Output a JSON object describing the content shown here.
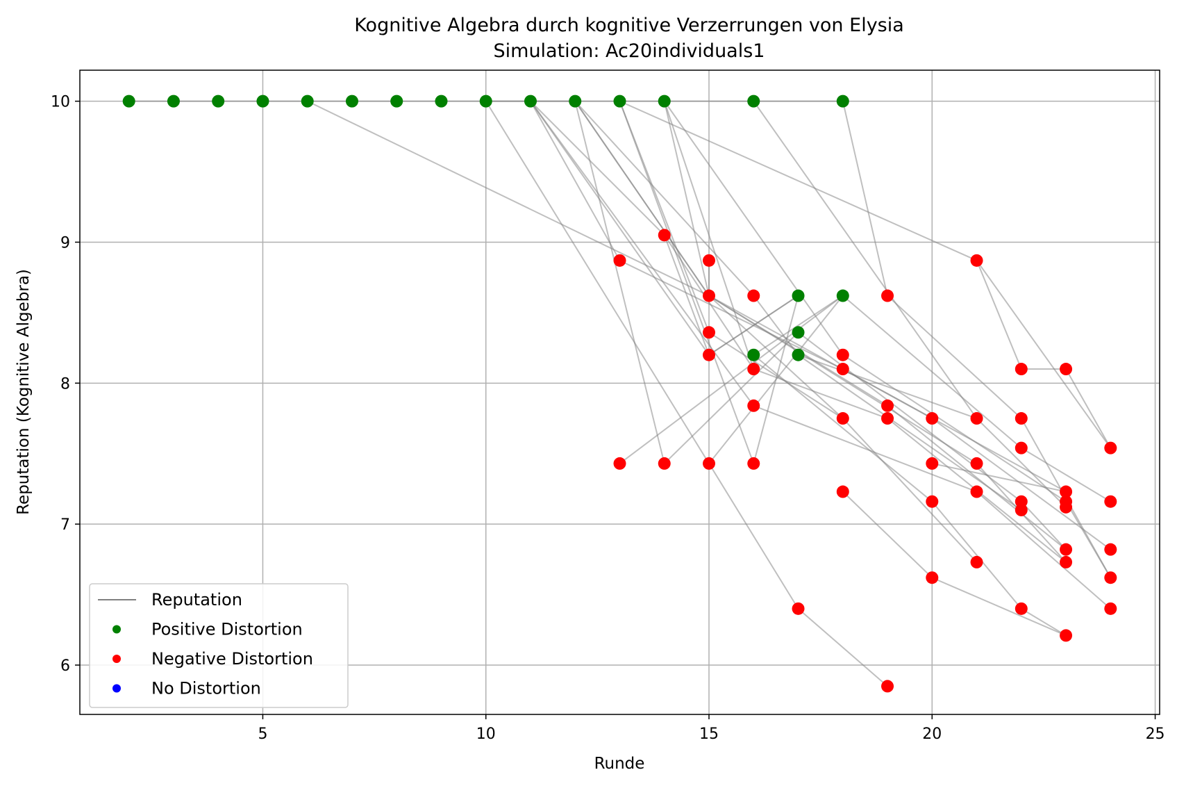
{
  "chart_data": {
    "type": "scatter",
    "title": "Kognitive Algebra durch kognitive Verzerrungen von Elysia",
    "subtitle": "Simulation: Ac20individuals1",
    "xlabel": "Runde",
    "ylabel": "Reputation (Kognitive Algebra)",
    "xlim": [
      0.9,
      25.1
    ],
    "ylim": [
      5.65,
      10.22
    ],
    "xticks": [
      5,
      10,
      15,
      20,
      25
    ],
    "yticks": [
      6,
      7,
      8,
      9,
      10
    ],
    "grid": true,
    "legend_position": "bottom-left",
    "colors": {
      "line": "#808080",
      "positive": "#008000",
      "negative": "#ff0000",
      "none": "#0000ff"
    },
    "legend": [
      {
        "label": "Reputation",
        "kind": "line",
        "color": "#808080"
      },
      {
        "label": "Positive Distortion",
        "kind": "dot",
        "color": "#008000"
      },
      {
        "label": "Negative Distortion",
        "kind": "dot",
        "color": "#ff0000"
      },
      {
        "label": "No Distortion",
        "kind": "dot",
        "color": "#0000ff"
      }
    ],
    "points": [
      {
        "x": 2,
        "y": 10.0,
        "d": "positive"
      },
      {
        "x": 3,
        "y": 10.0,
        "d": "positive"
      },
      {
        "x": 4,
        "y": 10.0,
        "d": "positive"
      },
      {
        "x": 5,
        "y": 10.0,
        "d": "positive"
      },
      {
        "x": 6,
        "y": 10.0,
        "d": "positive"
      },
      {
        "x": 7,
        "y": 10.0,
        "d": "positive"
      },
      {
        "x": 8,
        "y": 10.0,
        "d": "positive"
      },
      {
        "x": 9,
        "y": 10.0,
        "d": "positive"
      },
      {
        "x": 10,
        "y": 10.0,
        "d": "positive"
      },
      {
        "x": 11,
        "y": 10.0,
        "d": "positive"
      },
      {
        "x": 12,
        "y": 10.0,
        "d": "positive"
      },
      {
        "x": 13,
        "y": 10.0,
        "d": "positive"
      },
      {
        "x": 14,
        "y": 10.0,
        "d": "positive"
      },
      {
        "x": 16,
        "y": 10.0,
        "d": "positive"
      },
      {
        "x": 18,
        "y": 10.0,
        "d": "positive"
      },
      {
        "x": 14,
        "y": 9.05,
        "d": "negative"
      },
      {
        "x": 13,
        "y": 8.87,
        "d": "negative"
      },
      {
        "x": 15,
        "y": 8.87,
        "d": "negative"
      },
      {
        "x": 15,
        "y": 8.62,
        "d": "negative"
      },
      {
        "x": 16,
        "y": 8.62,
        "d": "negative"
      },
      {
        "x": 17,
        "y": 8.62,
        "d": "positive"
      },
      {
        "x": 18,
        "y": 8.62,
        "d": "positive"
      },
      {
        "x": 19,
        "y": 8.62,
        "d": "negative"
      },
      {
        "x": 21,
        "y": 8.87,
        "d": "negative"
      },
      {
        "x": 15,
        "y": 8.36,
        "d": "negative"
      },
      {
        "x": 17,
        "y": 8.36,
        "d": "positive"
      },
      {
        "x": 15,
        "y": 8.2,
        "d": "negative"
      },
      {
        "x": 16,
        "y": 8.2,
        "d": "positive"
      },
      {
        "x": 17,
        "y": 8.2,
        "d": "positive"
      },
      {
        "x": 18,
        "y": 8.2,
        "d": "negative"
      },
      {
        "x": 16,
        "y": 8.1,
        "d": "negative"
      },
      {
        "x": 18,
        "y": 8.1,
        "d": "negative"
      },
      {
        "x": 22,
        "y": 8.1,
        "d": "negative"
      },
      {
        "x": 23,
        "y": 8.1,
        "d": "negative"
      },
      {
        "x": 16,
        "y": 7.84,
        "d": "negative"
      },
      {
        "x": 19,
        "y": 7.84,
        "d": "negative"
      },
      {
        "x": 18,
        "y": 7.75,
        "d": "negative"
      },
      {
        "x": 19,
        "y": 7.75,
        "d": "negative"
      },
      {
        "x": 20,
        "y": 7.75,
        "d": "negative"
      },
      {
        "x": 21,
        "y": 7.75,
        "d": "negative"
      },
      {
        "x": 22,
        "y": 7.75,
        "d": "negative"
      },
      {
        "x": 24,
        "y": 7.54,
        "d": "negative"
      },
      {
        "x": 22,
        "y": 7.54,
        "d": "negative"
      },
      {
        "x": 13,
        "y": 7.43,
        "d": "negative"
      },
      {
        "x": 14,
        "y": 7.43,
        "d": "negative"
      },
      {
        "x": 15,
        "y": 7.43,
        "d": "negative"
      },
      {
        "x": 16,
        "y": 7.43,
        "d": "negative"
      },
      {
        "x": 20,
        "y": 7.43,
        "d": "negative"
      },
      {
        "x": 21,
        "y": 7.43,
        "d": "negative"
      },
      {
        "x": 18,
        "y": 7.23,
        "d": "negative"
      },
      {
        "x": 21,
        "y": 7.23,
        "d": "negative"
      },
      {
        "x": 23,
        "y": 7.23,
        "d": "negative"
      },
      {
        "x": 20,
        "y": 7.16,
        "d": "negative"
      },
      {
        "x": 22,
        "y": 7.16,
        "d": "negative"
      },
      {
        "x": 23,
        "y": 7.16,
        "d": "negative"
      },
      {
        "x": 24,
        "y": 7.16,
        "d": "negative"
      },
      {
        "x": 23,
        "y": 7.12,
        "d": "negative"
      },
      {
        "x": 22,
        "y": 7.1,
        "d": "negative"
      },
      {
        "x": 23,
        "y": 6.82,
        "d": "negative"
      },
      {
        "x": 24,
        "y": 6.82,
        "d": "negative"
      },
      {
        "x": 21,
        "y": 6.73,
        "d": "negative"
      },
      {
        "x": 23,
        "y": 6.73,
        "d": "negative"
      },
      {
        "x": 20,
        "y": 6.62,
        "d": "negative"
      },
      {
        "x": 24,
        "y": 6.62,
        "d": "negative"
      },
      {
        "x": 17,
        "y": 6.4,
        "d": "negative"
      },
      {
        "x": 22,
        "y": 6.4,
        "d": "negative"
      },
      {
        "x": 24,
        "y": 6.4,
        "d": "negative"
      },
      {
        "x": 23,
        "y": 6.21,
        "d": "negative"
      },
      {
        "x": 19,
        "y": 5.85,
        "d": "negative"
      }
    ],
    "segments": [
      [
        2,
        10,
        3,
        10
      ],
      [
        3,
        10,
        4,
        10
      ],
      [
        4,
        10,
        5,
        10
      ],
      [
        5,
        10,
        6,
        10
      ],
      [
        6,
        10,
        7,
        10
      ],
      [
        7,
        10,
        8,
        10
      ],
      [
        8,
        10,
        9,
        10
      ],
      [
        9,
        10,
        10,
        10
      ],
      [
        10,
        10,
        11,
        10
      ],
      [
        11,
        10,
        12,
        10
      ],
      [
        12,
        10,
        13,
        10
      ],
      [
        13,
        10,
        14,
        10
      ],
      [
        14,
        10,
        16,
        10
      ],
      [
        16,
        10,
        18,
        10
      ],
      [
        6,
        10,
        15,
        8.62
      ],
      [
        10,
        10,
        15,
        7.43
      ],
      [
        10,
        10,
        12,
        10
      ],
      [
        11,
        10,
        13,
        8.87
      ],
      [
        11,
        10,
        15,
        8.2
      ],
      [
        11,
        10,
        16,
        7.84
      ],
      [
        11,
        10,
        14,
        9.05
      ],
      [
        12,
        10,
        15,
        8.62
      ],
      [
        12,
        10,
        15,
        8.62
      ],
      [
        12,
        10,
        14,
        7.43
      ],
      [
        12,
        10,
        16,
        8.62
      ],
      [
        13,
        10,
        15,
        8.36
      ],
      [
        13,
        10,
        16,
        7.43
      ],
      [
        13,
        10,
        21,
        8.87
      ],
      [
        14,
        10,
        15,
        8.62
      ],
      [
        14,
        10,
        16,
        8.1
      ],
      [
        14,
        10,
        18,
        8.2
      ],
      [
        16,
        10,
        21,
        7.75
      ],
      [
        18,
        10,
        19,
        8.62
      ],
      [
        14,
        9.05,
        15,
        8.2
      ],
      [
        14,
        9.05,
        16,
        8.1
      ],
      [
        13,
        8.87,
        18,
        8.1
      ],
      [
        15,
        8.87,
        15,
        8.62
      ],
      [
        15,
        8.62,
        19,
        7.84
      ],
      [
        15,
        8.62,
        20,
        7.75
      ],
      [
        15,
        8.62,
        18,
        7.75
      ],
      [
        15,
        8.62,
        21,
        7.43
      ],
      [
        16,
        8.62,
        17,
        8.2
      ],
      [
        17,
        8.62,
        15,
        8.2
      ],
      [
        18,
        8.62,
        15,
        7.43
      ],
      [
        18,
        8.62,
        16,
        8.2
      ],
      [
        18,
        8.62,
        22,
        7.54
      ],
      [
        19,
        8.62,
        22,
        7.75
      ],
      [
        21,
        8.87,
        22,
        8.1
      ],
      [
        21,
        8.87,
        24,
        7.54
      ],
      [
        15,
        8.36,
        18,
        7.75
      ],
      [
        17,
        8.36,
        22,
        7.16
      ],
      [
        15,
        8.2,
        17,
        8.62
      ],
      [
        16,
        8.2,
        20,
        7.16
      ],
      [
        17,
        8.2,
        21,
        7.75
      ],
      [
        17,
        8.2,
        22,
        7.1
      ],
      [
        18,
        8.2,
        23,
        7.16
      ],
      [
        16,
        8.1,
        19,
        7.75
      ],
      [
        18,
        8.1,
        23,
        7.23
      ],
      [
        22,
        8.1,
        23,
        8.1
      ],
      [
        23,
        8.1,
        24,
        7.54
      ],
      [
        16,
        7.84,
        21,
        7.23
      ],
      [
        19,
        7.84,
        23,
        6.82
      ],
      [
        18,
        7.75,
        21,
        6.73
      ],
      [
        19,
        7.75,
        23,
        6.73
      ],
      [
        20,
        7.75,
        24,
        6.82
      ],
      [
        21,
        7.75,
        23,
        7.12
      ],
      [
        22,
        7.75,
        24,
        6.62
      ],
      [
        22,
        7.54,
        24,
        7.16
      ],
      [
        13,
        7.43,
        18,
        8.62
      ],
      [
        14,
        7.43,
        17,
        8.36
      ],
      [
        15,
        7.43,
        17,
        6.4
      ],
      [
        16,
        7.43,
        17,
        8.62
      ],
      [
        20,
        7.43,
        23,
        7.23
      ],
      [
        21,
        7.43,
        23,
        6.73
      ],
      [
        18,
        7.23,
        20,
        6.62
      ],
      [
        21,
        7.23,
        24,
        6.4
      ],
      [
        20,
        7.16,
        22,
        6.4
      ],
      [
        22,
        7.16,
        23,
        6.82
      ],
      [
        23,
        7.16,
        24,
        6.62
      ],
      [
        20,
        6.62,
        23,
        6.21
      ],
      [
        22,
        6.4,
        23,
        6.21
      ],
      [
        17,
        6.4,
        19,
        5.85
      ]
    ]
  }
}
